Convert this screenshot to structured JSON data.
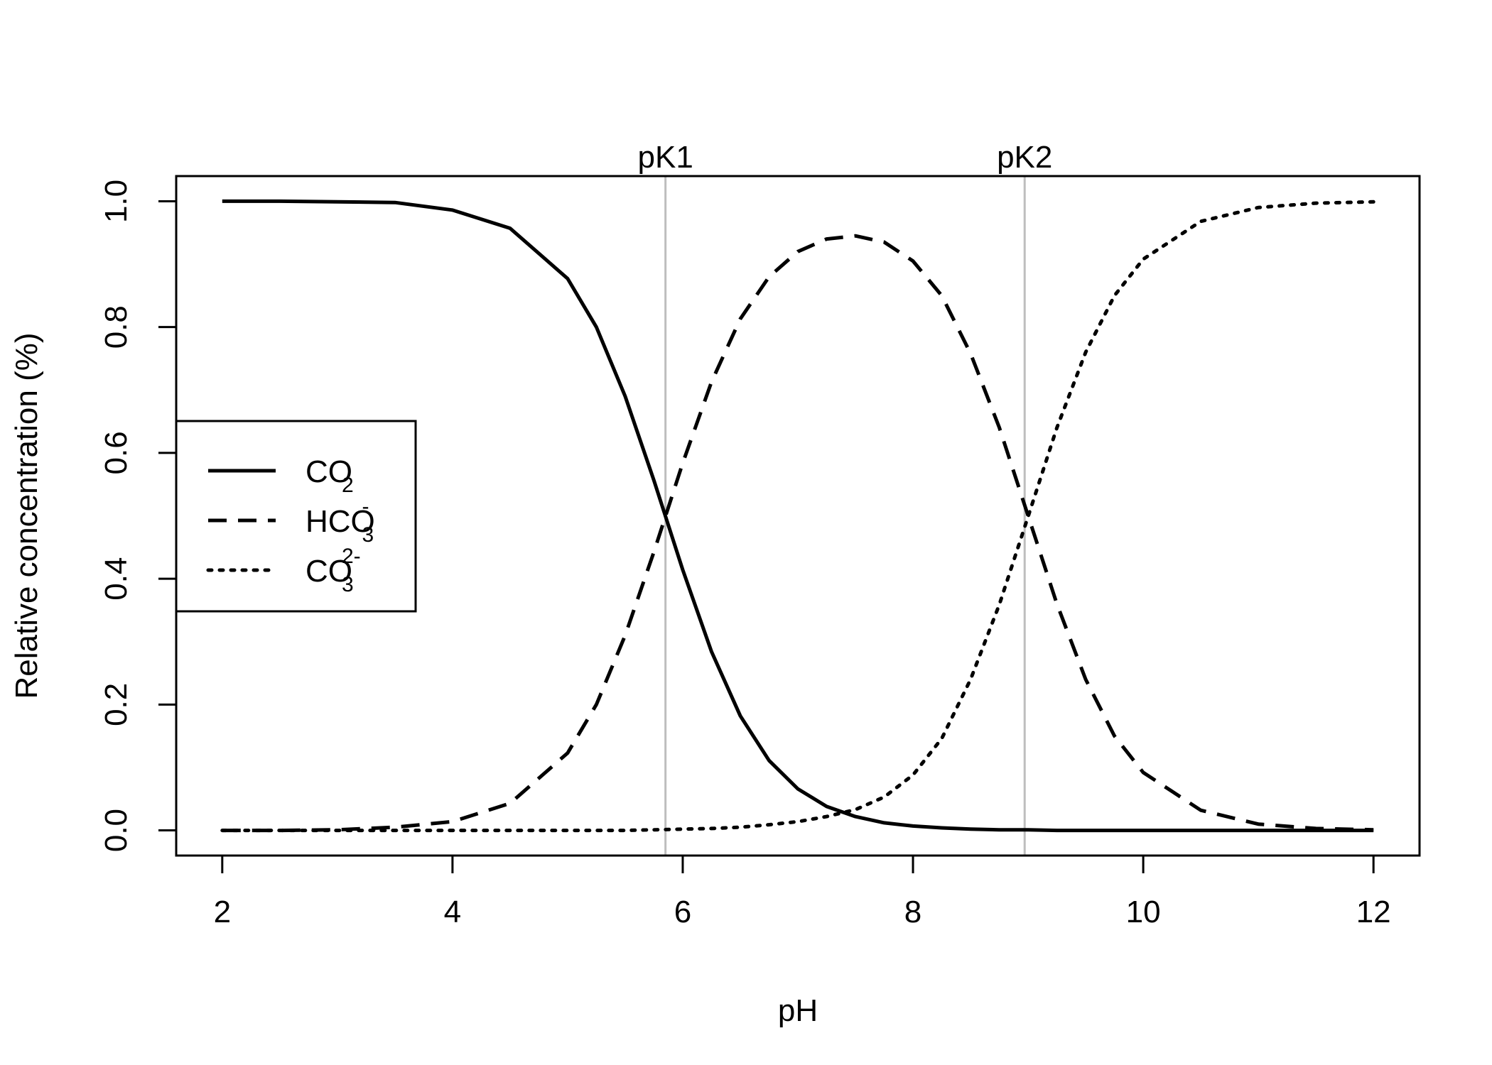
{
  "chart_data": {
    "type": "line",
    "title": "",
    "xlabel": "pH",
    "ylabel": "Relative concentration (%)",
    "xlim": [
      1.6,
      12.4
    ],
    "ylim": [
      -0.04,
      1.04
    ],
    "x_ticks": [
      2,
      4,
      6,
      8,
      10,
      12
    ],
    "y_ticks": [
      0.0,
      0.2,
      0.4,
      0.6,
      0.8,
      1.0
    ],
    "x_tick_labels": [
      "2",
      "4",
      "6",
      "8",
      "10",
      "12"
    ],
    "y_tick_labels": [
      "0.0",
      "0.2",
      "0.4",
      "0.6",
      "0.8",
      "1.0"
    ],
    "grid": false,
    "legend_position": "left",
    "vertical_lines": [
      {
        "label": "pK1",
        "x": 5.85,
        "color": "#bebebe"
      },
      {
        "label": "pK2",
        "x": 8.97,
        "color": "#bebebe"
      }
    ],
    "x": [
      2,
      2.5,
      3,
      3.5,
      4,
      4.5,
      5,
      5.25,
      5.5,
      5.75,
      6,
      6.25,
      6.5,
      6.75,
      7,
      7.25,
      7.5,
      7.75,
      8,
      8.25,
      8.5,
      8.75,
      9,
      9.25,
      9.5,
      9.75,
      10,
      10.5,
      11,
      11.5,
      12
    ],
    "series": [
      {
        "name": "CO₂",
        "base": "CO",
        "sub": "2",
        "sup": "",
        "line_style": "solid",
        "color": "#000000",
        "values": [
          1.0,
          1.0,
          0.999,
          0.998,
          0.986,
          0.957,
          0.877,
          0.8,
          0.69,
          0.556,
          0.414,
          0.284,
          0.182,
          0.111,
          0.066,
          0.038,
          0.022,
          0.012,
          0.007,
          0.004,
          0.002,
          0.001,
          0.001,
          0.0,
          0.0,
          0.0,
          0.0,
          0.0,
          0.0,
          0.0,
          0.0
        ]
      },
      {
        "name": "HCO₃⁻",
        "base": "HCO",
        "sub": "3",
        "sup": "-",
        "line_style": "dashed",
        "color": "#000000",
        "values": [
          0.0,
          0.0,
          0.001,
          0.005,
          0.014,
          0.043,
          0.123,
          0.2,
          0.31,
          0.443,
          0.584,
          0.713,
          0.813,
          0.88,
          0.92,
          0.94,
          0.945,
          0.935,
          0.905,
          0.85,
          0.758,
          0.64,
          0.5,
          0.36,
          0.24,
          0.15,
          0.092,
          0.032,
          0.01,
          0.003,
          0.001
        ]
      },
      {
        "name": "CO₃²⁻",
        "base": "CO",
        "sub": "3",
        "sup": "2-",
        "line_style": "dotted",
        "color": "#000000",
        "values": [
          0.0,
          0.0,
          0.0,
          0.0,
          0.0,
          0.0,
          0.0,
          0.0,
          0.0,
          0.001,
          0.002,
          0.003,
          0.005,
          0.009,
          0.014,
          0.022,
          0.033,
          0.053,
          0.088,
          0.146,
          0.24,
          0.359,
          0.499,
          0.64,
          0.76,
          0.85,
          0.908,
          0.968,
          0.99,
          0.997,
          0.999
        ]
      }
    ]
  }
}
